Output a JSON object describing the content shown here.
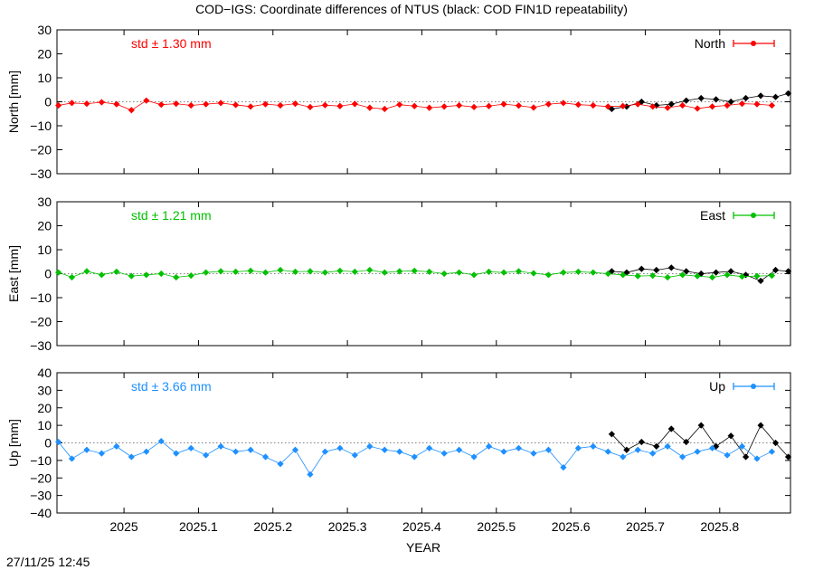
{
  "title": "COD−IGS: Coordinate differences of NTUS (black: COD FIN1D repeatability)",
  "timestamp": "27/11/25 12:45",
  "colors": {
    "red": "#ff0000",
    "green": "#00c000",
    "blue": "#1e90ff",
    "black": "#000000"
  },
  "chart_data": {
    "type": "scatter",
    "xlabel": "YEAR",
    "xlim": [
      2024.91,
      2025.895
    ],
    "xticks": [
      2025,
      2025.1,
      2025.2,
      2025.3,
      2025.4,
      2025.5,
      2025.6,
      2025.7,
      2025.8
    ],
    "xtick_labels": [
      "2025",
      "2025.1",
      "2025.2",
      "2025.3",
      "2025.4",
      "2025.5",
      "2025.6",
      "2025.7",
      "2025.8"
    ],
    "panels": [
      {
        "ylabel": "North [mm]",
        "ylim": [
          -30,
          30
        ],
        "yticks": [
          -30,
          -20,
          -10,
          0,
          10,
          20,
          30
        ],
        "ytick_labels": [
          "−30",
          "−20",
          "−10",
          "0",
          "10",
          "20",
          "30"
        ],
        "legend": "North",
        "std_text": "std ± 1.30 mm",
        "color": "#ff0000",
        "series": [
          {
            "name": "COD−IGS",
            "x": [
              2024.912,
              2024.93,
              2024.95,
              2024.97,
              2024.99,
              2025.01,
              2025.03,
              2025.05,
              2025.07,
              2025.09,
              2025.11,
              2025.13,
              2025.15,
              2025.17,
              2025.19,
              2025.21,
              2025.23,
              2025.25,
              2025.27,
              2025.29,
              2025.31,
              2025.33,
              2025.35,
              2025.37,
              2025.39,
              2025.41,
              2025.43,
              2025.45,
              2025.47,
              2025.49,
              2025.51,
              2025.53,
              2025.55,
              2025.57,
              2025.59,
              2025.61,
              2025.63,
              2025.65,
              2025.67,
              2025.69,
              2025.71,
              2025.73,
              2025.75,
              2025.77,
              2025.79,
              2025.81,
              2025.83,
              2025.85,
              2025.87
            ],
            "y": [
              -1.5,
              -0.5,
              -0.8,
              -0.2,
              -1.0,
              -3.5,
              0.5,
              -1.2,
              -0.8,
              -1.5,
              -1.0,
              -0.5,
              -1.3,
              -2.0,
              -1.0,
              -1.5,
              -0.8,
              -2.2,
              -1.4,
              -1.8,
              -0.9,
              -2.5,
              -3.0,
              -1.2,
              -1.8,
              -2.5,
              -2.0,
              -1.5,
              -2.2,
              -1.8,
              -1.0,
              -1.6,
              -2.4,
              -1.0,
              -0.5,
              -1.2,
              -1.5,
              -2.0,
              -1.8,
              -1.0,
              -2.0,
              -2.5,
              -1.5,
              -2.8,
              -2.0,
              -1.5,
              -0.8,
              -1.0,
              -1.5
            ]
          },
          {
            "name": "COD FIN1D repeatability",
            "x": [
              2025.655,
              2025.675,
              2025.695,
              2025.715,
              2025.735,
              2025.755,
              2025.775,
              2025.795,
              2025.815,
              2025.835,
              2025.855,
              2025.875,
              2025.892
            ],
            "y": [
              -3.0,
              -2.0,
              0.0,
              -1.5,
              -1.0,
              0.5,
              1.5,
              1.0,
              0.0,
              1.5,
              2.5,
              2.0,
              3.5
            ]
          }
        ]
      },
      {
        "ylabel": "East [mm]",
        "ylim": [
          -30,
          30
        ],
        "yticks": [
          -30,
          -20,
          -10,
          0,
          10,
          20,
          30
        ],
        "ytick_labels": [
          "−30",
          "−20",
          "−10",
          "0",
          "10",
          "20",
          "30"
        ],
        "legend": "East",
        "std_text": "std ± 1.21 mm",
        "color": "#00c000",
        "series": [
          {
            "name": "COD−IGS",
            "x": [
              2024.912,
              2024.93,
              2024.95,
              2024.97,
              2024.99,
              2025.01,
              2025.03,
              2025.05,
              2025.07,
              2025.09,
              2025.11,
              2025.13,
              2025.15,
              2025.17,
              2025.19,
              2025.21,
              2025.23,
              2025.25,
              2025.27,
              2025.29,
              2025.31,
              2025.33,
              2025.35,
              2025.37,
              2025.39,
              2025.41,
              2025.43,
              2025.45,
              2025.47,
              2025.49,
              2025.51,
              2025.53,
              2025.55,
              2025.57,
              2025.59,
              2025.61,
              2025.63,
              2025.65,
              2025.67,
              2025.69,
              2025.71,
              2025.73,
              2025.75,
              2025.77,
              2025.79,
              2025.81,
              2025.83,
              2025.85,
              2025.87
            ],
            "y": [
              0.5,
              -1.5,
              1.0,
              -0.5,
              0.8,
              -1.0,
              -0.5,
              0.0,
              -1.5,
              -0.8,
              0.5,
              1.0,
              0.8,
              1.2,
              0.5,
              1.5,
              0.8,
              1.0,
              0.5,
              1.2,
              0.8,
              1.5,
              0.5,
              1.0,
              1.2,
              0.8,
              0.0,
              0.5,
              -0.5,
              0.8,
              0.5,
              1.0,
              0.2,
              -0.5,
              0.5,
              0.8,
              0.5,
              0.0,
              -0.5,
              -1.0,
              -0.8,
              -1.5,
              -0.5,
              -1.0,
              -1.5,
              -0.5,
              -1.2,
              -1.0,
              -0.8
            ]
          },
          {
            "name": "COD FIN1D repeatability",
            "x": [
              2025.655,
              2025.675,
              2025.695,
              2025.715,
              2025.735,
              2025.755,
              2025.775,
              2025.795,
              2025.815,
              2025.835,
              2025.855,
              2025.875,
              2025.892
            ],
            "y": [
              1.0,
              0.5,
              2.0,
              1.5,
              2.5,
              1.0,
              0.0,
              0.5,
              1.0,
              -0.5,
              -3.0,
              1.5,
              1.0
            ]
          }
        ]
      },
      {
        "ylabel": "Up [mm]",
        "ylim": [
          -40,
          40
        ],
        "yticks": [
          -40,
          -30,
          -20,
          -10,
          0,
          10,
          20,
          30,
          40
        ],
        "ytick_labels": [
          "−40",
          "−30",
          "−20",
          "−10",
          "0",
          "10",
          "20",
          "30",
          "40"
        ],
        "legend": "Up",
        "std_text": "std ± 3.66 mm",
        "color": "#1e90ff",
        "series": [
          {
            "name": "COD−IGS",
            "x": [
              2024.912,
              2024.93,
              2024.95,
              2024.97,
              2024.99,
              2025.01,
              2025.03,
              2025.05,
              2025.07,
              2025.09,
              2025.11,
              2025.13,
              2025.15,
              2025.17,
              2025.19,
              2025.21,
              2025.23,
              2025.25,
              2025.27,
              2025.29,
              2025.31,
              2025.33,
              2025.35,
              2025.37,
              2025.39,
              2025.41,
              2025.43,
              2025.45,
              2025.47,
              2025.49,
              2025.51,
              2025.53,
              2025.55,
              2025.57,
              2025.59,
              2025.61,
              2025.63,
              2025.65,
              2025.67,
              2025.69,
              2025.71,
              2025.73,
              2025.75,
              2025.77,
              2025.79,
              2025.81,
              2025.83,
              2025.85,
              2025.87
            ],
            "y": [
              0.5,
              -9.0,
              -4.0,
              -6.0,
              -2.0,
              -8.0,
              -5.0,
              1.0,
              -6.0,
              -3.0,
              -7.0,
              -2.0,
              -5.0,
              -4.0,
              -8.0,
              -12.0,
              -4.0,
              -18.0,
              -5.0,
              -3.0,
              -7.0,
              -2.0,
              -4.0,
              -5.0,
              -8.0,
              -3.0,
              -6.0,
              -4.0,
              -8.0,
              -2.0,
              -5.0,
              -3.0,
              -6.0,
              -4.0,
              -14.0,
              -3.0,
              -2.0,
              -5.0,
              -8.0,
              -4.0,
              -6.0,
              -2.0,
              -8.0,
              -5.0,
              -3.0,
              -7.0,
              -2.0,
              -9.0,
              -5.0
            ]
          },
          {
            "name": "COD FIN1D repeatability",
            "x": [
              2025.655,
              2025.675,
              2025.695,
              2025.715,
              2025.735,
              2025.755,
              2025.775,
              2025.795,
              2025.815,
              2025.835,
              2025.855,
              2025.875,
              2025.892
            ],
            "y": [
              5.0,
              -4.0,
              0.5,
              -2.0,
              8.0,
              0.5,
              10.0,
              -2.0,
              4.0,
              -8.0,
              10.0,
              0.0,
              -8.0
            ]
          }
        ]
      }
    ]
  }
}
